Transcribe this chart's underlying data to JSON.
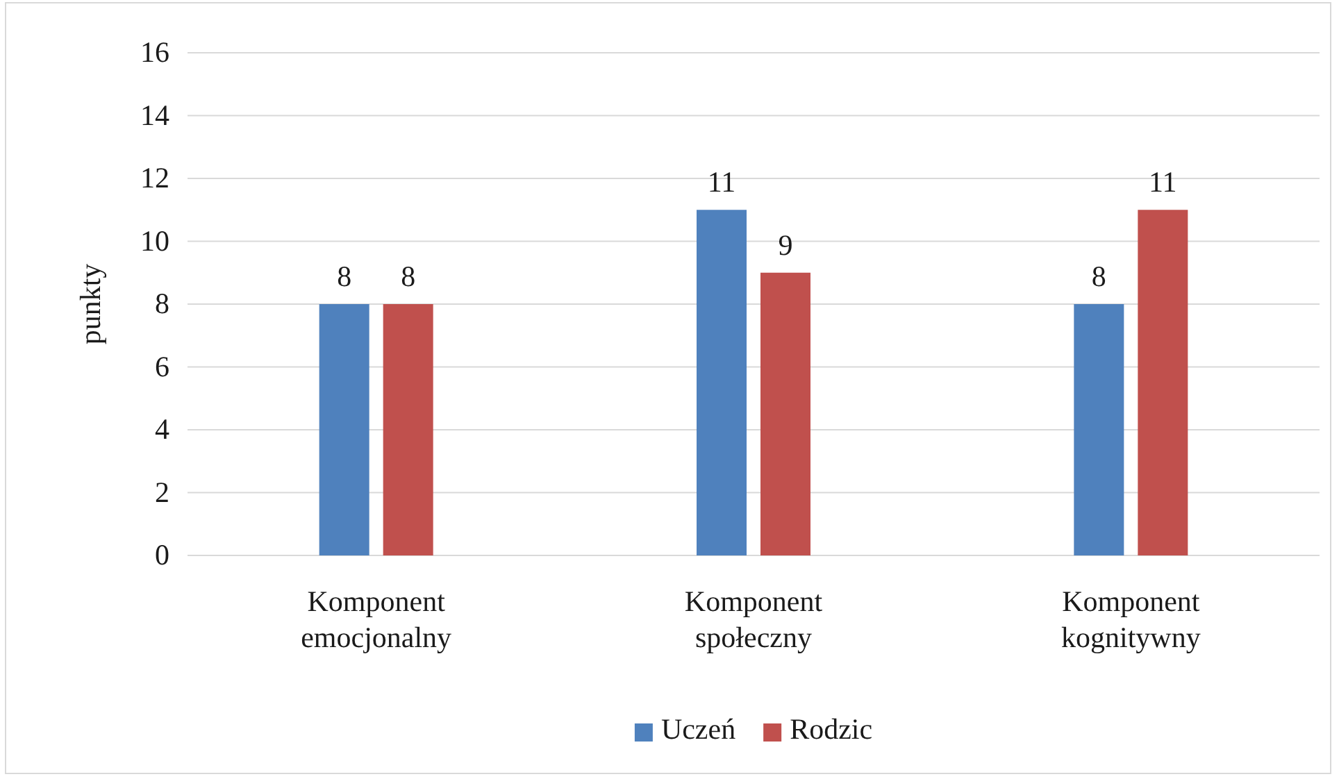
{
  "chart_data": {
    "type": "bar",
    "ylabel": "punkty",
    "categories": [
      "Komponent emocjonalny",
      "Komponent społeczny",
      "Komponent kognitywny"
    ],
    "series": [
      {
        "name": "Uczeń",
        "color": "#4f81bd",
        "values": [
          8,
          11,
          8
        ]
      },
      {
        "name": "Rodzic",
        "color": "#c0504d",
        "values": [
          8,
          9,
          11
        ]
      }
    ],
    "ylim": [
      0,
      16
    ],
    "yticks": [
      0,
      2,
      4,
      6,
      8,
      10,
      12,
      14,
      16
    ],
    "grid": "y",
    "data_labels": true,
    "legend": "bottom"
  }
}
